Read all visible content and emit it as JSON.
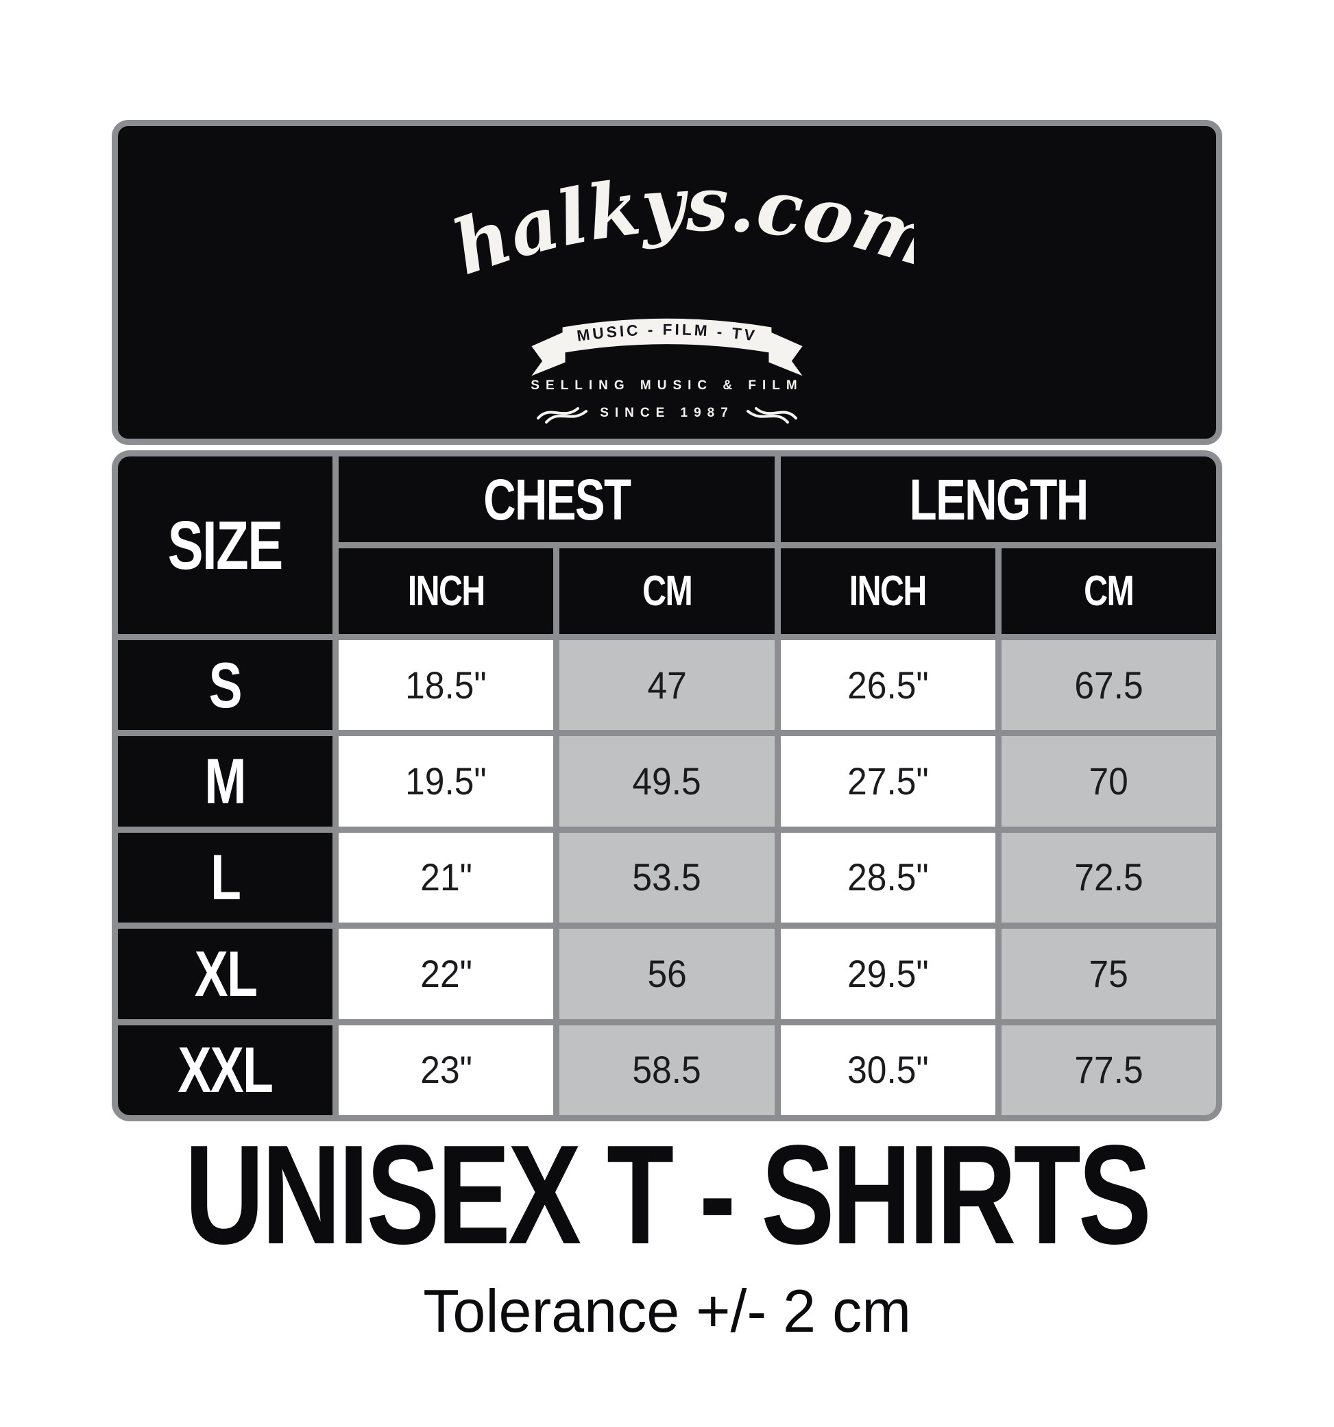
{
  "brand": {
    "name": "Chalkys.com",
    "banner": "MUSIC - FILM - TV",
    "tagline1": "SELLING MUSIC & FILM",
    "tagline2": "SINCE 1987"
  },
  "table": {
    "headers": {
      "size": "SIZE",
      "chest": "CHEST",
      "length": "LENGTH",
      "inch": "INCH",
      "cm": "CM"
    },
    "rows": [
      {
        "size": "S",
        "chest_inch": "18.5\"",
        "chest_cm": "47",
        "length_inch": "26.5\"",
        "length_cm": "67.5"
      },
      {
        "size": "M",
        "chest_inch": "19.5\"",
        "chest_cm": "49.5",
        "length_inch": "27.5\"",
        "length_cm": "70"
      },
      {
        "size": "L",
        "chest_inch": "21\"",
        "chest_cm": "53.5",
        "length_inch": "28.5\"",
        "length_cm": "72.5"
      },
      {
        "size": "XL",
        "chest_inch": "22\"",
        "chest_cm": "56",
        "length_inch": "29.5\"",
        "length_cm": "75"
      },
      {
        "size": "XXL",
        "chest_inch": "23\"",
        "chest_cm": "58.5",
        "length_inch": "30.5\"",
        "length_cm": "77.5"
      }
    ]
  },
  "footer": {
    "title": "UNISEX T - SHIRTS",
    "tolerance": "Tolerance +/- 2 cm"
  },
  "colors": {
    "black": "#0b0b0d",
    "border_gray": "#8b8d90",
    "cell_gray": "#bfc1c3",
    "white": "#ffffff"
  },
  "chart_data": {
    "type": "table",
    "title": "UNISEX T - SHIRTS",
    "columns": [
      "SIZE",
      "CHEST INCH",
      "CHEST CM",
      "LENGTH INCH",
      "LENGTH CM"
    ],
    "rows": [
      [
        "S",
        "18.5\"",
        47,
        "26.5\"",
        67.5
      ],
      [
        "M",
        "19.5\"",
        49.5,
        "27.5\"",
        70
      ],
      [
        "L",
        "21\"",
        53.5,
        "28.5\"",
        72.5
      ],
      [
        "XL",
        "22\"",
        56,
        "29.5\"",
        75
      ],
      [
        "XXL",
        "23\"",
        58.5,
        "30.5\"",
        77.5
      ]
    ],
    "note": "Tolerance +/- 2 cm"
  }
}
